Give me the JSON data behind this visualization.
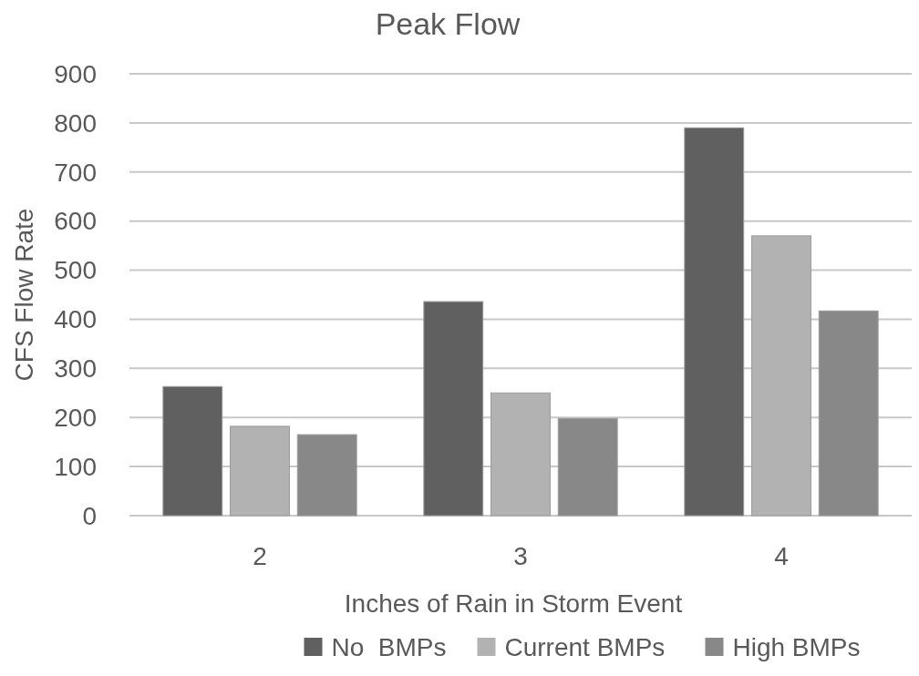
{
  "chart_data": {
    "type": "bar",
    "title": "Peak Flow",
    "xlabel": "Inches of Rain in Storm Event",
    "ylabel": "CFS Flow Rate",
    "categories": [
      "2",
      "3",
      "4"
    ],
    "series": [
      {
        "name": "No  BMPs",
        "color": "#606060",
        "values": [
          263,
          436,
          790
        ]
      },
      {
        "name": "Current BMPs",
        "color": "#b2b2b2",
        "values": [
          182,
          250,
          570
        ]
      },
      {
        "name": "High BMPs",
        "color": "#888888",
        "values": [
          165,
          198,
          417
        ]
      }
    ],
    "ylim": [
      0,
      900
    ],
    "yticks": [
      0,
      100,
      200,
      300,
      400,
      500,
      600,
      700,
      800,
      900
    ],
    "grid": "y",
    "legend": "bottom"
  }
}
